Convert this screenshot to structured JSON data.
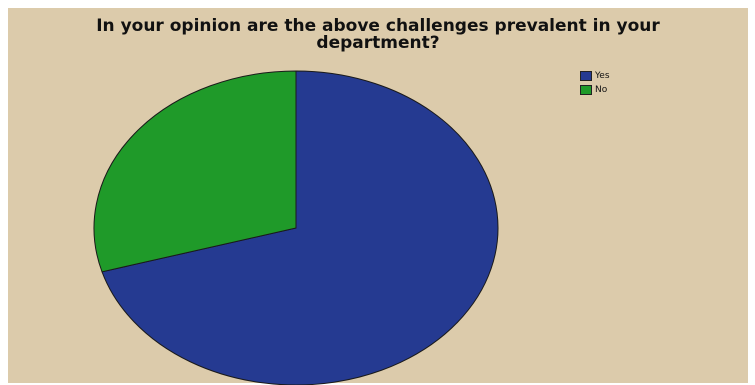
{
  "chart_data": {
    "type": "pie",
    "title": "In your opinion are the above challenges prevalent in your\ndepartment?",
    "categories": [
      "Yes",
      "No"
    ],
    "values": [
      70.5,
      29.5
    ],
    "unit": "%",
    "colors": [
      "#253a91",
      "#1f9a29"
    ],
    "legend": {
      "placement": "top-right",
      "entries": [
        "Yes",
        "No"
      ]
    }
  }
}
